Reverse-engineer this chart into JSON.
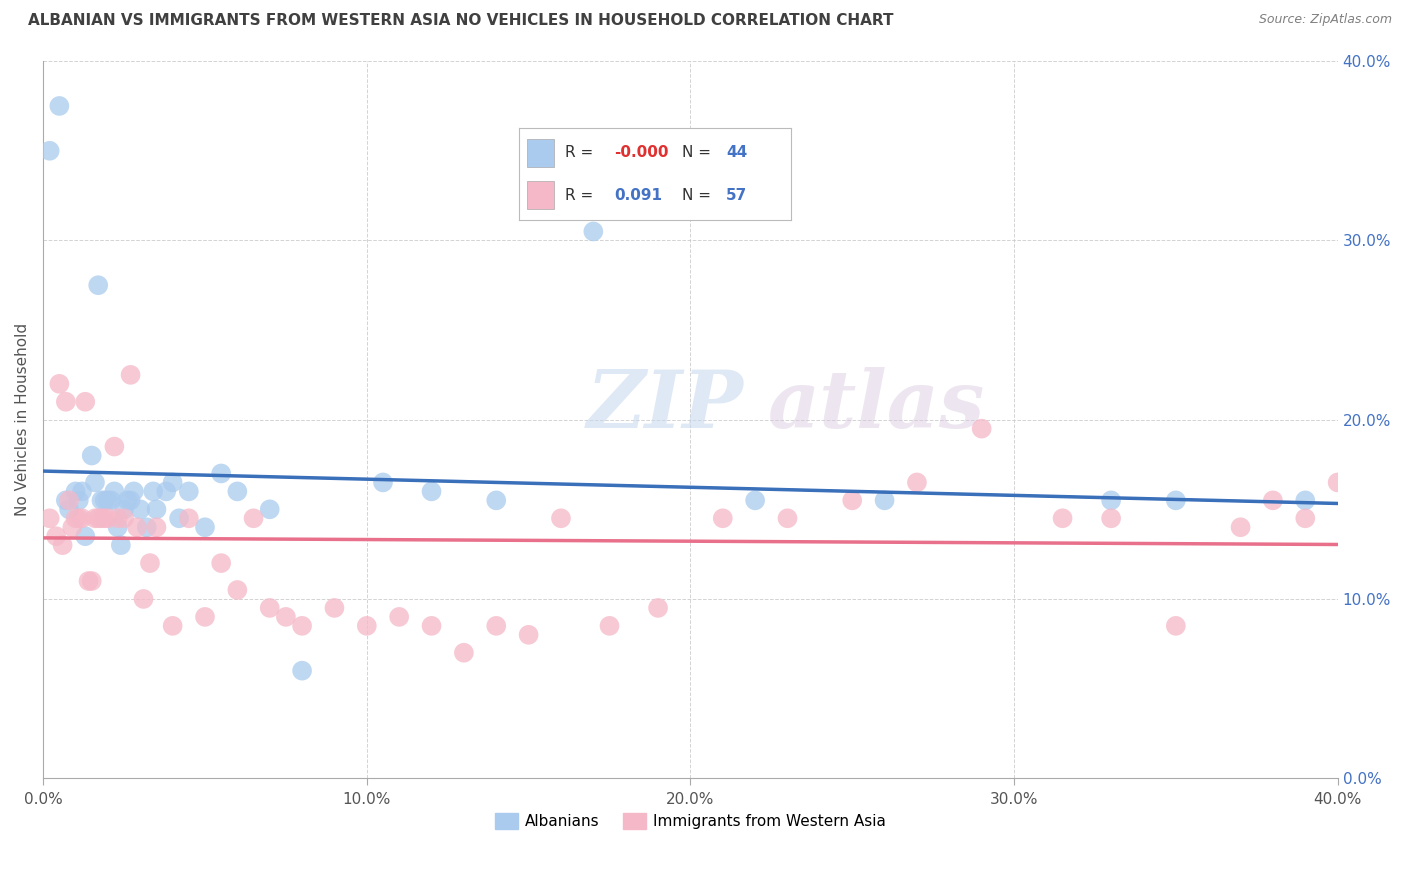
{
  "title": "ALBANIAN VS IMMIGRANTS FROM WESTERN ASIA NO VEHICLES IN HOUSEHOLD CORRELATION CHART",
  "source": "Source: ZipAtlas.com",
  "ylabel": "No Vehicles in Household",
  "xlim": [
    0.0,
    40.0
  ],
  "ylim": [
    0.0,
    40.0
  ],
  "xticks": [
    0,
    10,
    20,
    30,
    40
  ],
  "yticks": [
    0,
    10,
    20,
    30,
    40
  ],
  "legend_entry1": {
    "color": "#aacbee",
    "R": "-0.000",
    "N": "44",
    "label": "Albanians"
  },
  "legend_entry2": {
    "color": "#f5b8c8",
    "R": "0.091",
    "N": "57",
    "label": "Immigrants from Western Asia"
  },
  "blue_color": "#aacbee",
  "pink_color": "#f5b8c8",
  "blue_line_color": "#3a6fba",
  "pink_line_color": "#e8708a",
  "albanians_x": [
    0.2,
    0.5,
    0.7,
    0.8,
    1.0,
    1.1,
    1.2,
    1.3,
    1.5,
    1.6,
    1.7,
    1.8,
    1.9,
    2.0,
    2.1,
    2.2,
    2.3,
    2.4,
    2.5,
    2.6,
    2.7,
    2.8,
    3.0,
    3.2,
    3.4,
    3.5,
    3.8,
    4.0,
    4.2,
    4.5,
    5.0,
    5.5,
    6.0,
    7.0,
    8.0,
    10.5,
    12.0,
    14.0,
    17.0,
    22.0,
    26.0,
    33.0,
    35.0,
    39.0
  ],
  "albanians_y": [
    35.0,
    37.5,
    15.5,
    15.0,
    16.0,
    15.5,
    16.0,
    13.5,
    18.0,
    16.5,
    27.5,
    15.5,
    15.5,
    15.5,
    15.5,
    16.0,
    14.0,
    13.0,
    15.0,
    15.5,
    15.5,
    16.0,
    15.0,
    14.0,
    16.0,
    15.0,
    16.0,
    16.5,
    14.5,
    16.0,
    14.0,
    17.0,
    16.0,
    15.0,
    6.0,
    16.5,
    16.0,
    15.5,
    30.5,
    15.5,
    15.5,
    15.5,
    15.5,
    15.5
  ],
  "immigrants_x": [
    0.2,
    0.4,
    0.5,
    0.6,
    0.7,
    0.8,
    0.9,
    1.0,
    1.1,
    1.2,
    1.3,
    1.4,
    1.5,
    1.6,
    1.7,
    1.8,
    1.9,
    2.0,
    2.2,
    2.3,
    2.5,
    2.7,
    2.9,
    3.1,
    3.3,
    3.5,
    4.0,
    4.5,
    5.0,
    5.5,
    6.0,
    6.5,
    7.0,
    7.5,
    8.0,
    9.0,
    10.0,
    11.0,
    12.0,
    13.0,
    14.0,
    15.0,
    16.0,
    17.5,
    19.0,
    21.0,
    23.0,
    25.0,
    27.0,
    29.0,
    31.5,
    33.0,
    35.0,
    37.0,
    38.0,
    39.0,
    40.0
  ],
  "immigrants_y": [
    14.5,
    13.5,
    22.0,
    13.0,
    21.0,
    15.5,
    14.0,
    14.5,
    14.5,
    14.5,
    21.0,
    11.0,
    11.0,
    14.5,
    14.5,
    14.5,
    14.5,
    14.5,
    18.5,
    14.5,
    14.5,
    22.5,
    14.0,
    10.0,
    12.0,
    14.0,
    8.5,
    14.5,
    9.0,
    12.0,
    10.5,
    14.5,
    9.5,
    9.0,
    8.5,
    9.5,
    8.5,
    9.0,
    8.5,
    7.0,
    8.5,
    8.0,
    14.5,
    8.5,
    9.5,
    14.5,
    14.5,
    15.5,
    16.5,
    19.5,
    14.5,
    14.5,
    8.5,
    14.0,
    15.5,
    14.5,
    16.5
  ],
  "watermark_zip": "ZIP",
  "watermark_atlas": "atlas",
  "background_color": "#ffffff",
  "grid_color": "#c8c8c8",
  "right_tick_color": "#4472c4",
  "title_color": "#404040",
  "source_color": "#808080"
}
